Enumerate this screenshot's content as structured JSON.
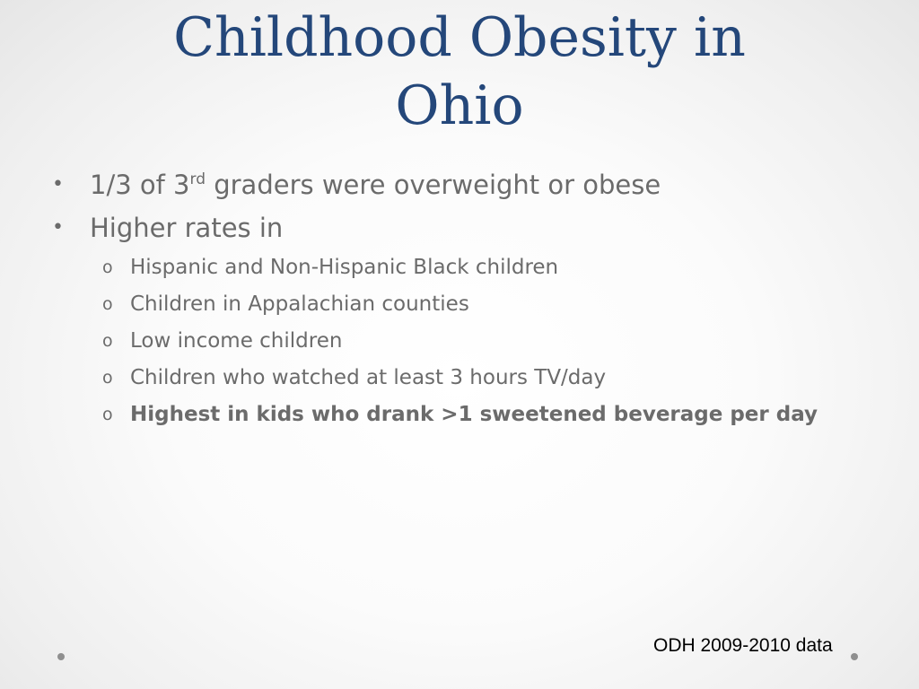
{
  "title": {
    "line1": "Childhood Obesity in",
    "line2": "Ohio"
  },
  "bullets": {
    "item1": {
      "marker": "•",
      "text_before": "1/3 of 3",
      "superscript": "rd",
      "text_after": " graders were overweight or obese"
    },
    "item2": {
      "marker": "•",
      "text": "Higher rates in",
      "subitems": [
        {
          "marker": "o",
          "text": "Hispanic and Non-Hispanic Black children"
        },
        {
          "marker": "o",
          "text": "Children in Appalachian counties"
        },
        {
          "marker": "o",
          "text": "Low income children"
        },
        {
          "marker": "o",
          "text": "Children who watched at least 3 hours TV/day"
        },
        {
          "marker": "o",
          "text": "Highest in kids who drank >1 sweetened beverage per day"
        }
      ]
    }
  },
  "source": "ODH 2009-2010 data",
  "colors": {
    "title": "#24477a",
    "body_text": "#6b6b6b",
    "source_text": "#000000",
    "decor_dots": "#8f8f8f"
  }
}
